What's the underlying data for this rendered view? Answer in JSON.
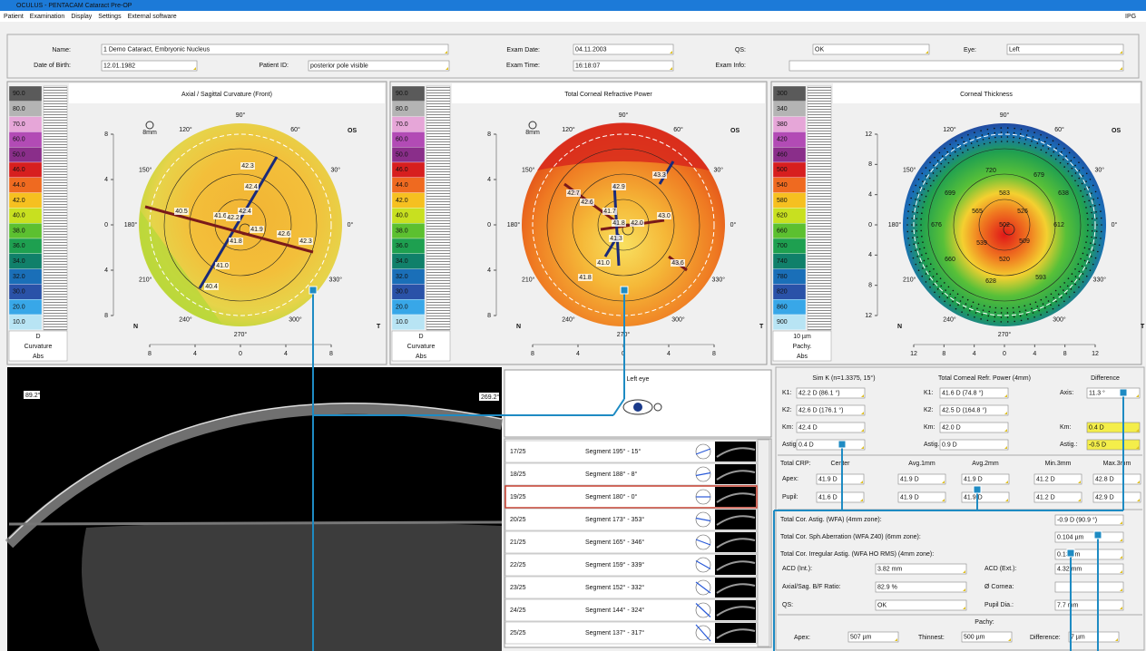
{
  "window": {
    "title": "OCULUS - PENTACAM Cataract Pre-OP",
    "menu": [
      "Patient",
      "Examination",
      "Display",
      "Settings",
      "External software"
    ],
    "menu_right": "IPG"
  },
  "patient": {
    "fields": [
      {
        "label": "Name:",
        "value": "1 Demo Cataract, Embryonic Nucleus"
      },
      {
        "label": "Date of Birth:",
        "value": "12.01.1982"
      },
      {
        "label": "Patient ID:",
        "value": "posterior pole visible"
      },
      {
        "label": "Exam Date:",
        "value": "04.11.2003"
      },
      {
        "label": "Exam Time:",
        "value": "16:18:07"
      },
      {
        "label": "QS:",
        "value": "OK"
      },
      {
        "label": "Eye:",
        "value": "Left"
      },
      {
        "label": "Exam Info:"
      }
    ]
  },
  "scale_colors": [
    "#5a5a5a",
    "#b4b4b4",
    "#e6a6d8",
    "#b24bb5",
    "#8a2e8a",
    "#d71f1f",
    "#ef6a20",
    "#f6c020",
    "#c8e020",
    "#5cc030",
    "#1ea050",
    "#10806a",
    "#1a6fb8",
    "#2a52a8",
    "#38a7e8",
    "#b8e4f4"
  ],
  "maps": [
    {
      "title": "Axial / Sagittal Curvature (Front)",
      "scale": [
        "90.0",
        "80.0",
        "70.0",
        "60.0",
        "50.0",
        "46.0",
        "44.0",
        "42.0",
        "40.0",
        "38.0",
        "36.0",
        "34.0",
        "32.0",
        "30.0",
        "20.0",
        "10.0"
      ],
      "unit": "D",
      "scale_type": "Curvature",
      "scale_mode": "Abs",
      "eye": "OS",
      "nasal": "N",
      "temporal": "T",
      "zoom": "8mm",
      "axis_labels": [
        "8",
        "4",
        "0",
        "4",
        "8"
      ],
      "angles": [
        "0°",
        "30°",
        "60°",
        "90°",
        "120°",
        "150°",
        "180°",
        "210°",
        "240°",
        "270°",
        "300°",
        "330°"
      ],
      "values": [
        "42.3",
        "42.4",
        "42.4",
        "41.6",
        "42.2",
        "40.5",
        "41.9",
        "42.6",
        "42.3",
        "41.8",
        "41.0",
        "40.4"
      ]
    },
    {
      "title": "Total Corneal Refractive Power",
      "scale": [
        "90.0",
        "80.0",
        "70.0",
        "60.0",
        "50.0",
        "46.0",
        "44.0",
        "42.0",
        "40.0",
        "38.0",
        "36.0",
        "34.0",
        "32.0",
        "30.0",
        "20.0",
        "10.0"
      ],
      "unit": "D",
      "scale_type": "Curvature",
      "scale_mode": "Abs",
      "eye": "OS",
      "nasal": "N",
      "temporal": "T",
      "zoom": "8mm",
      "axis_labels": [
        "8",
        "4",
        "0",
        "4",
        "8"
      ],
      "angles": [
        "0°",
        "30°",
        "60°",
        "90°",
        "120°",
        "150°",
        "180°",
        "210°",
        "240°",
        "270°",
        "300°",
        "330°"
      ],
      "values": [
        "43.3",
        "42.9",
        "42.7",
        "42.6",
        "41.7",
        "41.8",
        "42.0",
        "43.0",
        "41.3",
        "41.0",
        "41.8",
        "43.6"
      ]
    },
    {
      "title": "Corneal Thickness",
      "scale": [
        "300",
        "340",
        "380",
        "420",
        "460",
        "500",
        "540",
        "580",
        "620",
        "660",
        "700",
        "740",
        "780",
        "820",
        "860",
        "900"
      ],
      "unit": "10 µm",
      "scale_type": "Pachy.",
      "scale_mode": "Abs",
      "eye": "OS",
      "nasal": "N",
      "temporal": "T",
      "axis_labels": [
        "12",
        "8",
        "4",
        "0",
        "4",
        "8",
        "12"
      ],
      "angles": [
        "0°",
        "30°",
        "60°",
        "90°",
        "120°",
        "150°",
        "180°",
        "210°",
        "240°",
        "270°",
        "300°",
        "330°"
      ],
      "values": [
        "720",
        "679",
        "699",
        "583",
        "638",
        "565",
        "526",
        "676",
        "502",
        "612",
        "539",
        "509",
        "520",
        "628",
        "593",
        "660"
      ]
    }
  ],
  "scheimpflug": {
    "angle_left": "89.2°",
    "angle_right": "269.2°"
  },
  "segments": {
    "title": "Left eye",
    "rows": [
      {
        "index": "17/25",
        "label": "Segment 195° - 15°"
      },
      {
        "index": "18/25",
        "label": "Segment 188° - 8°"
      },
      {
        "index": "19/25",
        "label": "Segment 180° - 0°"
      },
      {
        "index": "20/25",
        "label": "Segment 173° - 353°"
      },
      {
        "index": "21/25",
        "label": "Segment 165° - 346°"
      },
      {
        "index": "22/25",
        "label": "Segment 159° - 339°"
      },
      {
        "index": "23/25",
        "label": "Segment 152° - 332°"
      },
      {
        "index": "24/25",
        "label": "Segment 144° - 324°"
      },
      {
        "index": "25/25",
        "label": "Segment 137° - 317°"
      }
    ]
  },
  "keratometry": {
    "headers": [
      "Sim K (n=1.3375, 15°)",
      "Total Corneal Refr. Power (4mm)",
      "Difference"
    ],
    "rows": [
      {
        "label": "K1:",
        "simk": "42.2 D (86.1 °)",
        "label2": "K1:",
        "tcrp": "41.6 D (74.8 °)",
        "label3": "Axis:",
        "diff": "11.3 °"
      },
      {
        "label": "K2:",
        "simk": "42.6 D (176.1 °)",
        "label2": "K2:",
        "tcrp": "42.5 D (164.8 °)"
      },
      {
        "label": "Km:",
        "simk": "42.4 D",
        "label2": "Km:",
        "tcrp": "42.0 D",
        "label3": "Km:",
        "diff": "0.4 D"
      },
      {
        "label": "Astig.:",
        "simk": "0.4 D",
        "label2": "Astig.:",
        "tcrp": "0.9 D",
        "label3": "Astig.:",
        "diff": "-0.5 D"
      }
    ]
  },
  "crp": {
    "title": "Total CRP:",
    "headers": [
      "Center",
      "Avg.1mm",
      "Avg.2mm",
      "Min.3mm",
      "Max.3mm"
    ],
    "rows": [
      {
        "label": "Apex:",
        "values": [
          "41.9 D",
          "41.9 D",
          "41.9 D",
          "41.2 D",
          "42.8 D"
        ]
      },
      {
        "label": "Pupil:",
        "values": [
          "41.6 D",
          "41.9 D",
          "41.9 D",
          "41.2 D",
          "42.9 D"
        ]
      }
    ]
  },
  "wfa": [
    {
      "label": "Total Cor. Astig. (WFA) (4mm zone):",
      "value": "-0.9 D (90.9 °)"
    },
    {
      "label": "Total Cor. Sph.Aberration (WFA Z40) (6mm zone):",
      "value": "0.104 µm"
    },
    {
      "label": "Total Cor. Irregular Astig. (WFA HO RMS) (4mm zone):",
      "value": "0.13 µm"
    }
  ],
  "params": [
    {
      "label": "ACD (Int.):",
      "value": "3.82 mm",
      "label2": "ACD (Ext.):",
      "value2": "4.32 mm"
    },
    {
      "label": "Axial/Sag. B/F Ratio:",
      "value": "82.9 %",
      "label2": "Ø Cornea:"
    },
    {
      "label": "QS:",
      "value": "OK",
      "label2": "Pupil Dia.:",
      "value2": "7.7 mm"
    }
  ],
  "pachy": {
    "title": "Pachy:",
    "items": [
      {
        "label": "Apex:",
        "value": "507 µm"
      },
      {
        "label": "Thinnest:",
        "value": "500 µm"
      },
      {
        "label": "Difference:",
        "value": "7 µm"
      }
    ]
  }
}
